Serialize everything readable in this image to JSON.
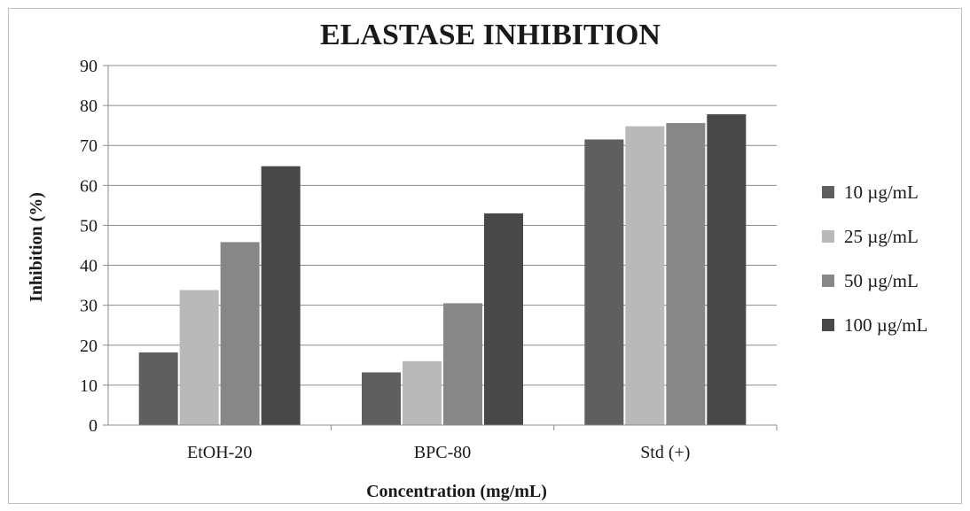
{
  "chart_data": {
    "type": "bar",
    "title": "ELASTASE INHIBITION",
    "xlabel": "Concentration  (mg/mL)",
    "ylabel": "Inhibition  (%)",
    "ylim": [
      0,
      90
    ],
    "yticks": [
      "0",
      "10",
      "20",
      "30",
      "40",
      "50",
      "60",
      "70",
      "80",
      "90"
    ],
    "categories": [
      "EtOH-20",
      "BPC-80",
      "Std (+)"
    ],
    "series": [
      {
        "name": "10 µg/mL",
        "color": "#5f5f5f",
        "values": [
          18.2,
          13.2,
          71.5
        ]
      },
      {
        "name": "25 µg/mL",
        "color": "#b9b9b9",
        "values": [
          33.8,
          16.0,
          74.8
        ]
      },
      {
        "name": "50 µg/mL",
        "color": "#878787",
        "values": [
          45.8,
          30.5,
          75.6
        ]
      },
      {
        "name": "100 µg/mL",
        "color": "#484848",
        "values": [
          64.8,
          53.0,
          77.8
        ]
      }
    ],
    "grid": true,
    "legend": "right"
  }
}
